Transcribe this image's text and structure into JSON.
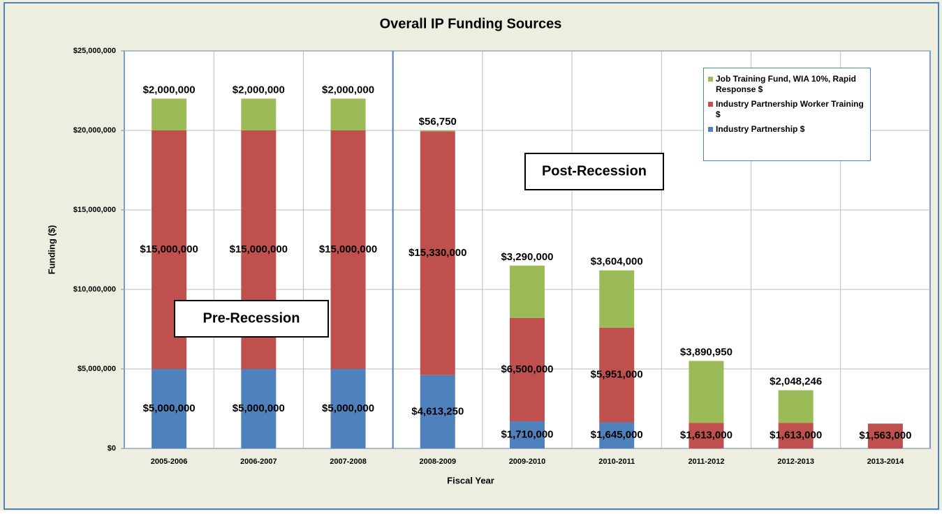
{
  "chart_data": {
    "type": "stacked_bar",
    "title": "Overall IP Funding Sources",
    "x_label": "Fiscal Year",
    "y_label": "Funding ($)",
    "categories": [
      "2005-2006",
      "2006-2007",
      "2007-2008",
      "2008-2009",
      "2009-2010",
      "2010-2011",
      "2011-2012",
      "2012-2013",
      "2013-2014"
    ],
    "series": [
      {
        "name": "Industry Partnership $",
        "color": "#4f81bd",
        "values": [
          5000000,
          5000000,
          5000000,
          4613250,
          1710000,
          1645000,
          null,
          null,
          null
        ],
        "value_labels": [
          "$5,000,000",
          "$5,000,000",
          "$5,000,000",
          "$4,613,250",
          "$1,710,000",
          "$1,645,000",
          null,
          null,
          null
        ]
      },
      {
        "name": "Industry Partnership Worker Training $",
        "color": "#c0504d",
        "values": [
          15000000,
          15000000,
          15000000,
          15330000,
          6500000,
          5951000,
          1613000,
          1613000,
          1563000
        ],
        "value_labels": [
          "$15,000,000",
          "$15,000,000",
          "$15,000,000",
          "$15,330,000",
          "$6,500,000",
          "$5,951,000",
          "$1,613,000",
          "$1,613,000",
          "$1,563,000"
        ]
      },
      {
        "name": "Job Training Fund, WIA 10%, Rapid Response $",
        "color": "#9bbb59",
        "values": [
          2000000,
          2000000,
          2000000,
          56750,
          3290000,
          3604000,
          3890950,
          2048246,
          null
        ],
        "value_labels": [
          "$2,000,000",
          "$2,000,000",
          "$2,000,000",
          "$56,750",
          "$3,290,000",
          "$3,604,000",
          "$3,890,950",
          "$2,048,246",
          null
        ]
      }
    ],
    "ylim": [
      0,
      25000000
    ],
    "yticks": [
      {
        "value": 0,
        "label": "$0"
      },
      {
        "value": 5000000,
        "label": "$5,000,000"
      },
      {
        "value": 10000000,
        "label": "$10,000,000"
      },
      {
        "value": 15000000,
        "label": "$15,000,000"
      },
      {
        "value": 20000000,
        "label": "$20,000,000"
      },
      {
        "value": 25000000,
        "label": "$25,000,000"
      }
    ],
    "grid": true,
    "legend": "upper right",
    "annotations": [
      "Pre-Recession",
      "Post-Recession"
    ]
  }
}
